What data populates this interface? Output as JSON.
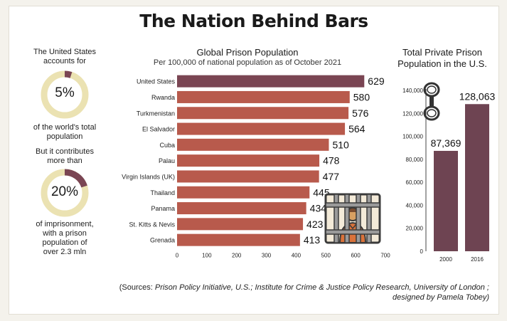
{
  "title": "The Nation Behind Bars",
  "left_panel": {
    "stat1": {
      "top_text": [
        "The United States",
        "accounts for"
      ],
      "value_label": "5%",
      "fraction": 0.05,
      "bottom_text": [
        "of the world's total",
        "population"
      ]
    },
    "stat2": {
      "top_text": [
        "But it contributes",
        "more than"
      ],
      "value_label": "20%",
      "fraction": 0.2,
      "bottom_text": [
        "of imprisonment,",
        "with a prison",
        "population of",
        "over 2.3 mln"
      ]
    }
  },
  "colors": {
    "bar_us": "#7a4553",
    "bar_other": "#b85a4c",
    "bar_private": "#6e4452",
    "donut_track": "#ebe2b2",
    "donut_fill": "#7a4553",
    "axis_text": "#222222",
    "grid": "#cccccc"
  },
  "icons": [
    "handcuffs-icon",
    "prisoner-behind-bars-icon"
  ],
  "chart_data": [
    {
      "type": "bar",
      "orientation": "horizontal",
      "title": "Global Prison Population",
      "subtitle": "Per 100,000 of national population as of October 2021",
      "categories": [
        "United States",
        "Rwanda",
        "Turkmenistan",
        "El Salvador",
        "Cuba",
        "Palau",
        "Virgin Islands (UK)",
        "Thailand",
        "Panama",
        "St. Kitts & Nevis",
        "Grenada"
      ],
      "values": [
        629,
        580,
        576,
        564,
        510,
        478,
        477,
        445,
        434,
        423,
        413
      ],
      "value_labels": [
        "629",
        "580",
        "576",
        "564",
        "510",
        "478",
        "477",
        "445",
        "434",
        "423",
        "413"
      ],
      "xlim": [
        0,
        700
      ],
      "xticks": [
        "0",
        "100",
        "200",
        "300",
        "400",
        "500",
        "600",
        "700"
      ],
      "grid": false
    },
    {
      "type": "bar",
      "orientation": "vertical",
      "title_lines": [
        "Total Private Prison",
        "Population in the U.S."
      ],
      "categories": [
        "2000",
        "2016"
      ],
      "values": [
        87369,
        128063
      ],
      "value_labels": [
        "87,369",
        "128,063"
      ],
      "ylim": [
        0,
        140000
      ],
      "yticks": [
        "0",
        "20,000",
        "40,000",
        "60,000",
        "80,000",
        "100,000",
        "120,000",
        "140,000"
      ],
      "grid": false
    }
  ],
  "sources": {
    "prefix": "(Sources: ",
    "source1": "Prison Policy Initiative, U.S.; Institute for Crime & Justice Policy Research, University of London ;",
    "line2": "designed by Pamela Tobey)"
  }
}
